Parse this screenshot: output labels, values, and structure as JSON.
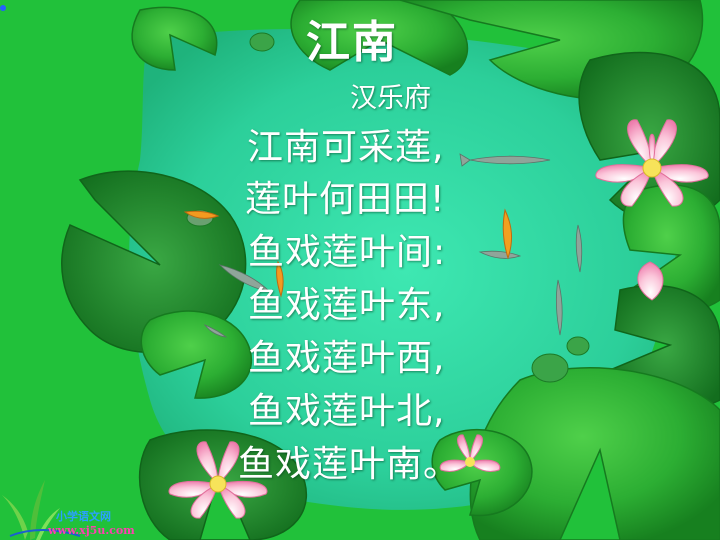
{
  "poem": {
    "title": "江南",
    "author": "汉乐府",
    "lines": [
      "江南可采莲,",
      "莲叶何田田!",
      "鱼戏莲叶间:",
      "鱼戏莲叶东,",
      "鱼戏莲叶西,",
      "鱼戏莲叶北,",
      "鱼戏莲叶南。"
    ]
  },
  "watermark": {
    "name": "小学语文网",
    "url": "www.xj5u.com"
  },
  "colors": {
    "pond": "#2fd6a0",
    "leaf": "#1f9e2c",
    "background": "#22c33a",
    "lotus": "#f7a9c8",
    "text": "#ffffff"
  },
  "icons": [
    "lotus-flower-icon",
    "lily-pad-icon",
    "fish-icon",
    "reed-logo-icon"
  ]
}
